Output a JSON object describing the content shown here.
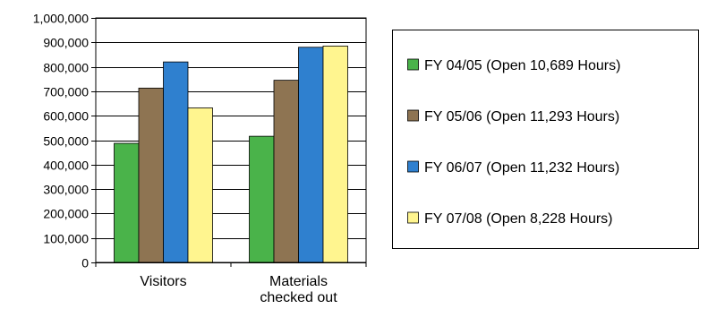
{
  "chart_data": {
    "type": "bar",
    "categories": [
      "Visitors",
      "Materials checked out"
    ],
    "category_lines": [
      [
        "Visitors"
      ],
      [
        "Materials",
        "checked out"
      ]
    ],
    "series": [
      {
        "name": "FY 04/05 (Open 10,689 Hours)",
        "color": "#4ab34a",
        "values": [
          487000,
          516000
        ]
      },
      {
        "name": "FY 05/06 (Open 11,293 Hours)",
        "color": "#8e7452",
        "values": [
          713000,
          745000
        ]
      },
      {
        "name": "FY 06/07 (Open 11,232 Hours)",
        "color": "#2f80cf",
        "values": [
          820000,
          880000
        ]
      },
      {
        "name": "FY 07/08 (Open 8,228 Hours)",
        "color": "#fff58f",
        "values": [
          632000,
          885000
        ]
      }
    ],
    "ylim": [
      0,
      1000000
    ],
    "yticks": [
      0,
      100000,
      200000,
      300000,
      400000,
      500000,
      600000,
      700000,
      800000,
      900000,
      1000000
    ],
    "ytick_labels": [
      "0",
      "100,000",
      "200,000",
      "300,000",
      "400,000",
      "500,000",
      "600,000",
      "700,000",
      "800,000",
      "900,000",
      "1,000,000"
    ],
    "title": "",
    "xlabel": "",
    "ylabel": "",
    "grid": true,
    "legend": "right"
  }
}
